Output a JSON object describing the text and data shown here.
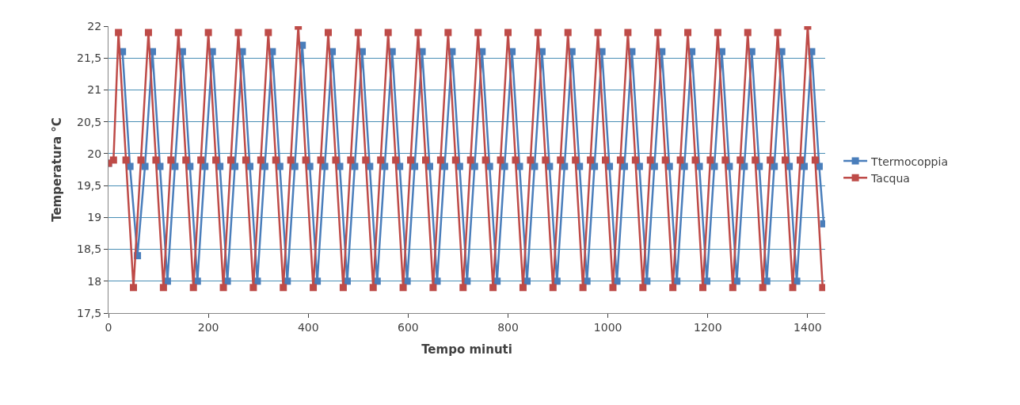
{
  "chart_data": {
    "type": "line",
    "xlabel": "Tempo minuti",
    "ylabel": "Temperatura °C",
    "xlim": [
      0,
      1435
    ],
    "xticks": [
      0,
      200,
      400,
      600,
      800,
      1000,
      1200,
      1400
    ],
    "ylim": [
      17.5,
      22
    ],
    "yticks": [
      {
        "value": 17.5,
        "label": "17,5"
      },
      18,
      {
        "value": 18.5,
        "label": "18,5"
      },
      19,
      {
        "value": 19.5,
        "label": "19,5"
      },
      20,
      {
        "value": 20.5,
        "label": "20,5"
      },
      21,
      {
        "value": 21.5,
        "label": "21,5"
      },
      22
    ],
    "grid": "y",
    "legend": "right",
    "marker": "square",
    "line_style": "solid",
    "series": [
      {
        "name": "Ttermocoppia",
        "color": "#4a7ebb",
        "x": [
          0,
          10,
          28,
          43,
          58,
          73,
          88,
          103,
          118,
          133,
          148,
          163,
          178,
          193,
          208,
          223,
          238,
          253,
          268,
          283,
          298,
          313,
          328,
          343,
          358,
          373,
          388,
          403,
          418,
          433,
          448,
          463,
          478,
          493,
          508,
          523,
          538,
          553,
          568,
          583,
          598,
          613,
          628,
          643,
          658,
          673,
          688,
          703,
          718,
          733,
          748,
          763,
          778,
          793,
          808,
          823,
          838,
          853,
          868,
          883,
          898,
          913,
          928,
          943,
          958,
          973,
          988,
          1003,
          1018,
          1033,
          1048,
          1063,
          1078,
          1093,
          1108,
          1123,
          1138,
          1153,
          1168,
          1183,
          1198,
          1213,
          1228,
          1243,
          1258,
          1273,
          1288,
          1303,
          1318,
          1333,
          1348,
          1363,
          1378,
          1393,
          1408,
          1423,
          1432
        ],
        "values": [
          19.85,
          null,
          21.6,
          19.8,
          18.4,
          19.8,
          21.6,
          19.8,
          18.0,
          19.8,
          21.6,
          19.8,
          18.0,
          19.8,
          21.6,
          19.8,
          18.0,
          19.8,
          21.6,
          19.8,
          18.0,
          19.8,
          21.6,
          19.8,
          18.0,
          19.8,
          21.7,
          19.8,
          18.0,
          19.8,
          21.6,
          19.8,
          18.0,
          19.8,
          21.6,
          19.8,
          18.0,
          19.8,
          21.6,
          19.8,
          18.0,
          19.8,
          21.6,
          19.8,
          18.0,
          19.8,
          21.6,
          19.8,
          18.0,
          19.8,
          21.6,
          19.8,
          18.0,
          19.8,
          21.6,
          19.8,
          18.0,
          19.8,
          21.6,
          19.8,
          18.0,
          19.8,
          21.6,
          19.8,
          18.0,
          19.8,
          21.6,
          19.8,
          18.0,
          19.8,
          21.6,
          19.8,
          18.0,
          19.8,
          21.6,
          19.8,
          18.0,
          19.8,
          21.6,
          19.8,
          18.0,
          19.8,
          21.6,
          19.8,
          18.0,
          19.8,
          21.6,
          19.8,
          18.0,
          19.8,
          21.6,
          19.8,
          18.0,
          19.8,
          21.6,
          19.8,
          18.9
        ]
      },
      {
        "name": "Tacqua",
        "color": "#be4b48",
        "x": [
          0,
          10,
          20,
          35,
          50,
          65,
          80,
          95,
          110,
          125,
          140,
          155,
          170,
          185,
          200,
          215,
          230,
          245,
          260,
          275,
          290,
          305,
          320,
          335,
          350,
          365,
          380,
          395,
          410,
          425,
          440,
          455,
          470,
          485,
          500,
          515,
          530,
          545,
          560,
          575,
          590,
          605,
          620,
          635,
          650,
          665,
          680,
          695,
          710,
          725,
          740,
          755,
          770,
          785,
          800,
          815,
          830,
          845,
          860,
          875,
          890,
          905,
          920,
          935,
          950,
          965,
          980,
          995,
          1010,
          1025,
          1040,
          1055,
          1070,
          1085,
          1100,
          1115,
          1130,
          1145,
          1160,
          1175,
          1190,
          1205,
          1220,
          1235,
          1250,
          1265,
          1280,
          1295,
          1310,
          1325,
          1340,
          1355,
          1370,
          1385,
          1400,
          1415,
          1430
        ],
        "values": [
          19.85,
          19.9,
          21.9,
          19.9,
          17.9,
          19.9,
          21.9,
          19.9,
          17.9,
          19.9,
          21.9,
          19.9,
          17.9,
          19.9,
          21.9,
          19.9,
          17.9,
          19.9,
          21.9,
          19.9,
          17.9,
          19.9,
          21.9,
          19.9,
          17.9,
          19.9,
          22.0,
          19.9,
          17.9,
          19.9,
          21.9,
          19.9,
          17.9,
          19.9,
          21.9,
          19.9,
          17.9,
          19.9,
          21.9,
          19.9,
          17.9,
          19.9,
          21.9,
          19.9,
          17.9,
          19.9,
          21.9,
          19.9,
          17.9,
          19.9,
          21.9,
          19.9,
          17.9,
          19.9,
          21.9,
          19.9,
          17.9,
          19.9,
          21.9,
          19.9,
          17.9,
          19.9,
          21.9,
          19.9,
          17.9,
          19.9,
          21.9,
          19.9,
          17.9,
          19.9,
          21.9,
          19.9,
          17.9,
          19.9,
          21.9,
          19.9,
          17.9,
          19.9,
          21.9,
          19.9,
          17.9,
          19.9,
          21.9,
          19.9,
          17.9,
          19.9,
          21.9,
          19.9,
          17.9,
          19.9,
          21.9,
          19.9,
          17.9,
          19.9,
          22.0,
          19.9,
          17.9
        ]
      }
    ]
  }
}
